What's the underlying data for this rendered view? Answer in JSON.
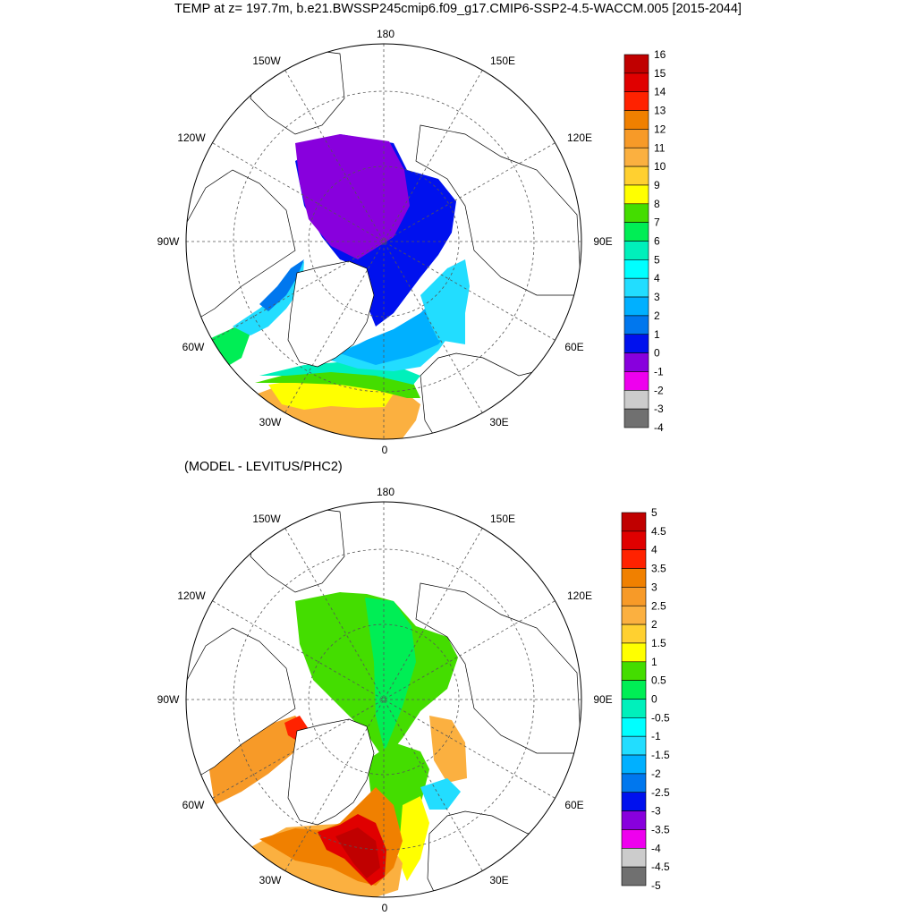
{
  "title": "TEMP at z= 197.7m, b.e21.BWSSP245cmip6.f09_g17.CMIP6-SSP2-4.5-WACCM.005 [2015-2044]",
  "subtitle": "(MODEL - LEVITUS/PHC2)",
  "map_labels": {
    "lon_180": "180",
    "lon_150W": "150W",
    "lon_150E": "150E",
    "lon_120W": "120W",
    "lon_120E": "120E",
    "lon_90W": "90W",
    "lon_90E": "90E",
    "lon_60W": "60W",
    "lon_60E": "60E",
    "lon_30W": "30W",
    "lon_30E": "30E",
    "lon_0": "0"
  },
  "colorbar_top": {
    "labels": [
      "16",
      "15",
      "14",
      "13",
      "12",
      "11",
      "10",
      "9",
      "8",
      "7",
      "6",
      "5",
      "4",
      "3",
      "2",
      "1",
      "0",
      "-1",
      "-2",
      "-3",
      "-4"
    ],
    "colors": [
      "#c00000",
      "#e00000",
      "#ff2200",
      "#f08000",
      "#f79a28",
      "#fbb040",
      "#ffd030",
      "#ffff00",
      "#44dd00",
      "#00ee55",
      "#00f0bb",
      "#00ffff",
      "#22ddff",
      "#00b0ff",
      "#0077ee",
      "#0011ee",
      "#8800dd",
      "#ee00ee",
      "#cccccc",
      "#707070"
    ]
  },
  "colorbar_bottom": {
    "labels": [
      "5",
      "4.5",
      "4",
      "3.5",
      "3",
      "2.5",
      "2",
      "1.5",
      "1",
      "0.5",
      "0",
      "-0.5",
      "-1",
      "-1.5",
      "-2",
      "-2.5",
      "-3",
      "-3.5",
      "-4",
      "-4.5",
      "-5"
    ],
    "colors": [
      "#c00000",
      "#e00000",
      "#ff2200",
      "#f08000",
      "#f79a28",
      "#fbb040",
      "#ffd030",
      "#ffff00",
      "#44dd00",
      "#00ee55",
      "#00f0bb",
      "#00ffff",
      "#22ddff",
      "#00b0ff",
      "#0077ee",
      "#0011ee",
      "#8800dd",
      "#ee00ee",
      "#cccccc",
      "#707070"
    ]
  }
}
